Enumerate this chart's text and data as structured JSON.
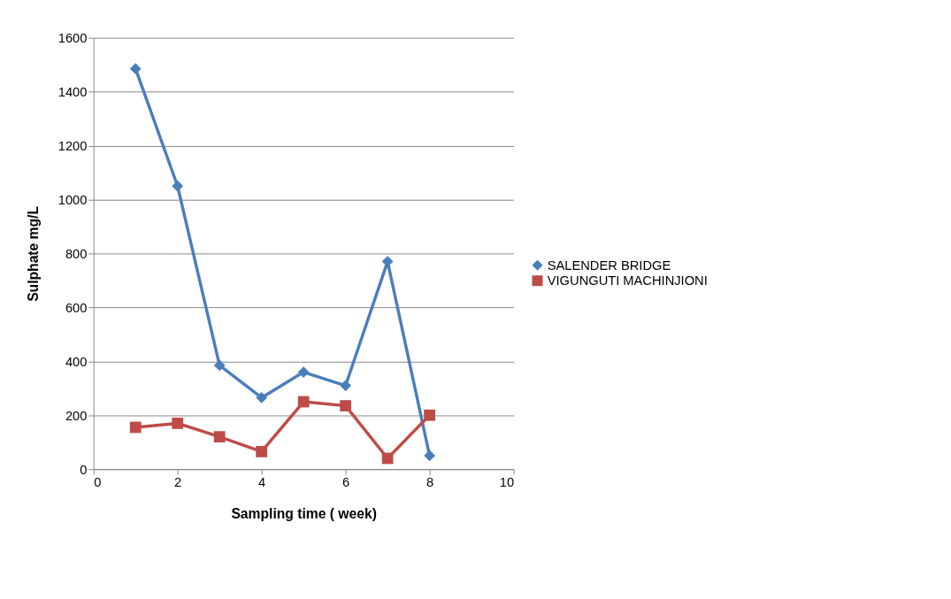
{
  "chart_data": {
    "type": "line",
    "xlabel": "Sampling time ( week)",
    "ylabel": "Sulphate mg/L",
    "x": [
      1,
      2,
      3,
      4,
      5,
      6,
      7,
      8
    ],
    "series": [
      {
        "name": "SALENDER BRIDGE",
        "color": "#4a7ebb",
        "marker": "diamond",
        "values": [
          1485,
          1050,
          385,
          265,
          360,
          310,
          770,
          50
        ]
      },
      {
        "name": "VIGUNGUTI MACHINJIONI",
        "color": "#be4b48",
        "marker": "square",
        "values": [
          155,
          170,
          120,
          65,
          250,
          235,
          40,
          200
        ]
      }
    ],
    "xlim": [
      0,
      10
    ],
    "xticks": [
      0,
      2,
      4,
      6,
      8,
      10
    ],
    "ylim": [
      0,
      1600
    ],
    "yticks": [
      0,
      200,
      400,
      600,
      800,
      1000,
      1200,
      1400,
      1600
    ],
    "grid": "y",
    "legend": "right",
    "line_style": "solid"
  }
}
